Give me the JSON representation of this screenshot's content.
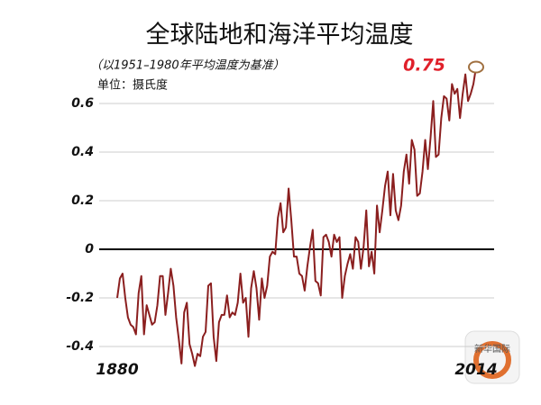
{
  "chart_data": {
    "type": "line",
    "title": "全球陆地和海洋平均温度",
    "subtitle": "（以1951–1980年平均温度为基准）",
    "unit_label": "单位：摄氏度",
    "watermark": "新华国际",
    "color": "#8b1f1f",
    "xlim": [
      1880,
      2014
    ],
    "xticks": [
      1880,
      2014
    ],
    "ylim": [
      -0.5,
      0.8
    ],
    "yticks": [
      -0.4,
      -0.2,
      0,
      0.2,
      0.4,
      0.6
    ],
    "grid": true,
    "x": [
      1880,
      1881,
      1882,
      1883,
      1884,
      1885,
      1886,
      1887,
      1888,
      1889,
      1890,
      1891,
      1892,
      1893,
      1894,
      1895,
      1896,
      1897,
      1898,
      1899,
      1900,
      1901,
      1902,
      1903,
      1904,
      1905,
      1906,
      1907,
      1908,
      1909,
      1910,
      1911,
      1912,
      1913,
      1914,
      1915,
      1916,
      1917,
      1918,
      1919,
      1920,
      1921,
      1922,
      1923,
      1924,
      1925,
      1926,
      1927,
      1928,
      1929,
      1930,
      1931,
      1932,
      1933,
      1934,
      1935,
      1936,
      1937,
      1938,
      1939,
      1940,
      1941,
      1942,
      1943,
      1944,
      1945,
      1946,
      1947,
      1948,
      1949,
      1950,
      1951,
      1952,
      1953,
      1954,
      1955,
      1956,
      1957,
      1958,
      1959,
      1960,
      1961,
      1962,
      1963,
      1964,
      1965,
      1966,
      1967,
      1968,
      1969,
      1970,
      1971,
      1972,
      1973,
      1974,
      1975,
      1976,
      1977,
      1978,
      1979,
      1980,
      1981,
      1982,
      1983,
      1984,
      1985,
      1986,
      1987,
      1988,
      1989,
      1990,
      1991,
      1992,
      1993,
      1994,
      1995,
      1996,
      1997,
      1998,
      1999,
      2000,
      2001,
      2002,
      2003,
      2004,
      2005,
      2006,
      2007,
      2008,
      2009,
      2010,
      2011,
      2012,
      2013,
      2014
    ],
    "values": [
      -0.2,
      -0.12,
      -0.1,
      -0.2,
      -0.28,
      -0.31,
      -0.32,
      -0.35,
      -0.18,
      -0.11,
      -0.35,
      -0.23,
      -0.27,
      -0.31,
      -0.3,
      -0.23,
      -0.11,
      -0.11,
      -0.27,
      -0.18,
      -0.08,
      -0.15,
      -0.28,
      -0.37,
      -0.47,
      -0.26,
      -0.22,
      -0.39,
      -0.43,
      -0.48,
      -0.43,
      -0.44,
      -0.36,
      -0.34,
      -0.15,
      -0.14,
      -0.36,
      -0.46,
      -0.3,
      -0.27,
      -0.27,
      -0.19,
      -0.28,
      -0.26,
      -0.27,
      -0.22,
      -0.1,
      -0.22,
      -0.2,
      -0.36,
      -0.16,
      -0.09,
      -0.16,
      -0.29,
      -0.12,
      -0.2,
      -0.15,
      -0.03,
      -0.01,
      -0.02,
      0.13,
      0.19,
      0.07,
      0.09,
      0.25,
      0.12,
      -0.03,
      -0.03,
      -0.1,
      -0.11,
      -0.17,
      -0.07,
      0.01,
      0.08,
      -0.13,
      -0.14,
      -0.19,
      0.05,
      0.06,
      0.03,
      -0.03,
      0.06,
      0.03,
      0.05,
      -0.2,
      -0.11,
      -0.06,
      -0.02,
      -0.08,
      0.05,
      0.03,
      -0.08,
      0.01,
      0.16,
      -0.07,
      -0.01,
      -0.1,
      0.18,
      0.07,
      0.16,
      0.26,
      0.32,
      0.14,
      0.31,
      0.16,
      0.12,
      0.18,
      0.32,
      0.39,
      0.27,
      0.45,
      0.41,
      0.22,
      0.23,
      0.32,
      0.45,
      0.33,
      0.46,
      0.61,
      0.38,
      0.39,
      0.54,
      0.63,
      0.62,
      0.53,
      0.68,
      0.64,
      0.66,
      0.54,
      0.64,
      0.72,
      0.61,
      0.64,
      0.68,
      0.75
    ]
  }
}
